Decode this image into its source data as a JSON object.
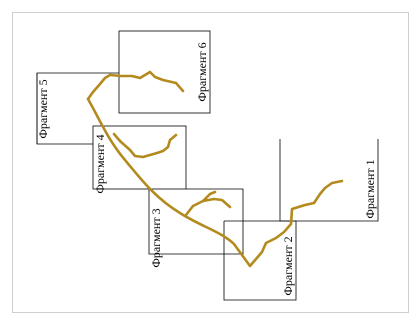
{
  "diagram": {
    "frame_color": "#000000",
    "route_color": "#b38a1e",
    "fragments": [
      {
        "id": "f1",
        "label": "Фрагмент 1"
      },
      {
        "id": "f2",
        "label": "Фрагмент 2"
      },
      {
        "id": "f3",
        "label": "Фрагмент 3"
      },
      {
        "id": "f4",
        "label": "Фрагмент 4"
      },
      {
        "id": "f5",
        "label": "Фрагмент 5"
      },
      {
        "id": "f6",
        "label": "Фрагмент 6"
      }
    ]
  }
}
